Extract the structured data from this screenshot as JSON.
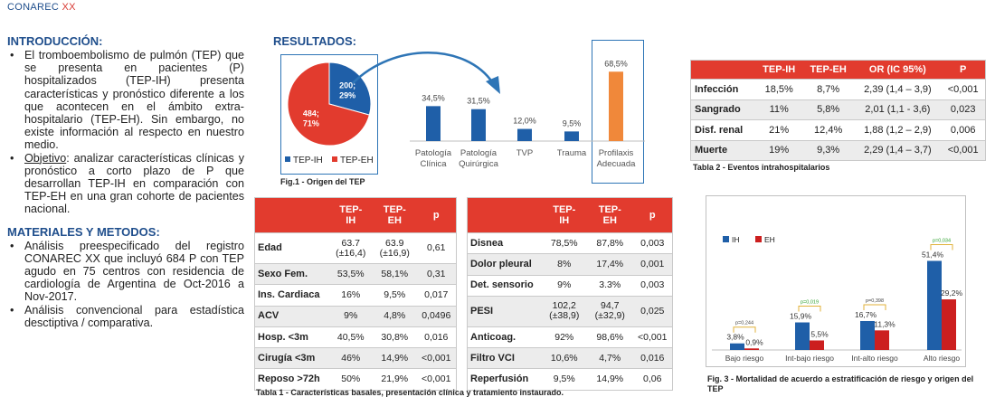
{
  "header": {
    "brand": "CONAREC",
    "brand_suffix": "XX"
  },
  "intro": {
    "title": "INTRODUCCIÓN:",
    "bullet1": "El tromboembolismo de pulmón (TEP) que se presenta en pacientes (P) hospitalizados (TEP-IH) presenta características y pronóstico diferente a los que acontecen en el ámbito extra-hospitalario (TEP-EH). Sin embargo, no existe información al respecto en nuestro medio.",
    "objective_label": "Objetivo",
    "objective_text": ": analizar características clínicas y pronóstico a corto plazo de P que desarrollan TEP-IH en comparación con TEP-EH en una gran cohorte de pacientes nacional."
  },
  "methods": {
    "title": "MATERIALES Y METODOS:",
    "bullet1": "Análisis preespecificado del registro CONAREC XX que incluyó 684 P con TEP agudo en 75 centros con residencia de cardiología de Argentina de Oct-2016 a Nov-2017.",
    "bullet2": "Análisis convencional para estadística desctiptiva / comparativa."
  },
  "results_title": "RESULTADOS:",
  "colors": {
    "red": "#e23b2e",
    "blue": "#1f5fa8",
    "orange": "#f0883a",
    "navy": "#1f4e8c"
  },
  "chart_data": [
    {
      "type": "pie",
      "caption": "Fig.1 - Origen del TEP",
      "slices": [
        {
          "name": "TEP-IH",
          "value": 200,
          "pct": "29%",
          "label_top": "200;",
          "label_bottom": "29%",
          "color": "#1f5fa8"
        },
        {
          "name": "TEP-EH",
          "value": 484,
          "pct": "71%",
          "label_top": "484;",
          "label_bottom": "71%",
          "color": "#e23b2e"
        }
      ]
    },
    {
      "type": "bar",
      "categories": [
        [
          "Patología",
          "Clínica"
        ],
        [
          "Patología",
          "Quirúrgica"
        ],
        [
          "TVP"
        ],
        [
          "Trauma"
        ],
        [
          "Profilaxis",
          "Adecuada"
        ]
      ],
      "values": [
        34.5,
        31.5,
        12.0,
        9.5,
        68.5
      ],
      "labels": [
        "34,5%",
        "31,5%",
        "12,0%",
        "9,5%",
        "68,5%"
      ],
      "colors": [
        "#1f5fa8",
        "#1f5fa8",
        "#1f5fa8",
        "#1f5fa8",
        "#f0883a"
      ],
      "ylim": [
        0,
        75
      ]
    },
    {
      "type": "bar",
      "caption": "Fig. 3 - Mortalidad de acuerdo a estratificación de riesgo y origen del TEP",
      "categories": [
        "Bajo riesgo",
        "Int-bajo riesgo",
        "Int-alto riesgo",
        "Alto riesgo"
      ],
      "series": [
        {
          "name": "IH",
          "values": [
            3.8,
            15.9,
            16.7,
            51.4
          ],
          "labels": [
            "3,8%",
            "15,9%",
            "16,7%",
            "51,4%"
          ],
          "color": "#1f5fa8"
        },
        {
          "name": "EH",
          "values": [
            0.9,
            5.5,
            11.3,
            29.2
          ],
          "labels": [
            "0,9%",
            "5,5%",
            "11,3%",
            "29,2%"
          ],
          "color": "#cc1f1f"
        }
      ],
      "pvalues": [
        "p=0,244",
        "p=0,019",
        "p=0,398",
        "p=0,034"
      ],
      "ylim": [
        0,
        60
      ]
    }
  ],
  "table2": {
    "caption": "Tabla 2 - Eventos intrahospitalarios",
    "headers": [
      "",
      "TEP-IH",
      "TEP-EH",
      "OR (IC 95%)",
      "P"
    ],
    "rows": [
      [
        "Infección",
        "18,5%",
        "8,7%",
        "2,39 (1,4 – 3,9)",
        "<0,001"
      ],
      [
        "Sangrado",
        "11%",
        "5,8%",
        "2,01 (1,1 - 3,6)",
        "0,023"
      ],
      [
        "Disf. renal",
        "21%",
        "12,4%",
        "1,88 (1,2 – 2,9)",
        "0,006"
      ],
      [
        "Muerte",
        "19%",
        "9,3%",
        "2,29 (1,4 – 3,7)",
        "<0,001"
      ]
    ]
  },
  "table1": {
    "caption": "Tabla 1 - Características basales, presentación clínica  y tratamiento instaurado.",
    "left": {
      "headers": [
        "",
        "TEP-\nIH",
        "TEP-\nEH",
        "p"
      ],
      "rows": [
        [
          "Edad",
          "63.7\n(±16,4)",
          "63.9\n(±16,9)",
          "0,61"
        ],
        [
          "Sexo Fem.",
          "53,5%",
          "58,1%",
          "0,31"
        ],
        [
          "Ins. Cardiaca",
          "16%",
          "9,5%",
          "0,017"
        ],
        [
          "ACV",
          "9%",
          "4,8%",
          "0,0496"
        ],
        [
          "Hosp. <3m",
          "40,5%",
          "30,8%",
          "0,016"
        ],
        [
          "Cirugía <3m",
          "46%",
          "14,9%",
          "<0,001"
        ],
        [
          "Reposo >72h",
          "50%",
          "21,9%",
          "<0,001"
        ]
      ]
    },
    "right": {
      "headers": [
        "",
        "TEP-\nIH",
        "TEP-\nEH",
        "p"
      ],
      "rows": [
        [
          "Disnea",
          "78,5%",
          "87,8%",
          "0,003"
        ],
        [
          "Dolor pleural",
          "8%",
          "17,4%",
          "0,001"
        ],
        [
          "Det. sensorio",
          "9%",
          "3.3%",
          "0,003"
        ],
        [
          "PESI",
          "102,2\n(±38,9)",
          "94,7\n(±32,9)",
          "0,025"
        ],
        [
          "Anticoag.",
          "92%",
          "98,6%",
          "<0,001"
        ],
        [
          "Filtro VCI",
          "10,6%",
          "4,7%",
          "0,016"
        ],
        [
          "Reperfusión",
          "9,5%",
          "14,9%",
          "0,06"
        ]
      ]
    }
  }
}
